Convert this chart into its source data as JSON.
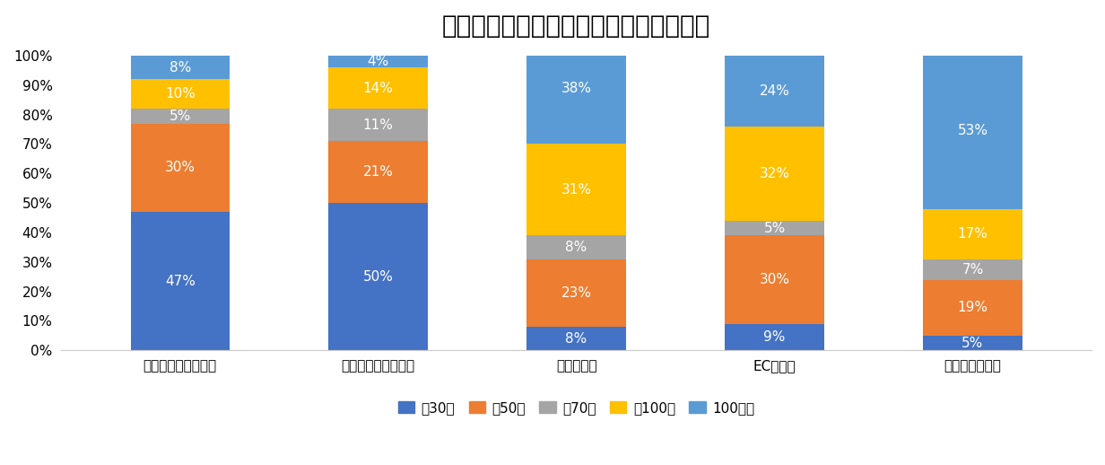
{
  "title": "東京都でのサイト種別ごとの費用の相場",
  "categories": [
    "コーポレートサイト",
    "ランディングページ",
    "採用サイト",
    "ECサイト",
    "ポータルサイト"
  ],
  "series": [
    {
      "label": "〜30万",
      "color": "#4472C4",
      "values": [
        47,
        50,
        8,
        9,
        5
      ]
    },
    {
      "label": "〜50万",
      "color": "#ED7D31",
      "values": [
        30,
        21,
        23,
        30,
        19
      ]
    },
    {
      "label": "〜70万",
      "color": "#A5A5A5",
      "values": [
        5,
        11,
        8,
        5,
        7
      ]
    },
    {
      "label": "〜100万",
      "color": "#FFC000",
      "values": [
        10,
        14,
        31,
        32,
        17
      ]
    },
    {
      "label": "100万〜",
      "color": "#5B9BD5",
      "values": [
        8,
        4,
        38,
        24,
        53
      ]
    }
  ],
  "background_color": "#FFFFFF",
  "title_fontsize": 20,
  "label_fontsize": 11,
  "tick_fontsize": 11,
  "legend_fontsize": 11,
  "bar_width": 0.5,
  "ylim": [
    0,
    100
  ],
  "yticks": [
    0,
    10,
    20,
    30,
    40,
    50,
    60,
    70,
    80,
    90,
    100
  ],
  "ytick_labels": [
    "0%",
    "10%",
    "20%",
    "30%",
    "40%",
    "50%",
    "60%",
    "70%",
    "80%",
    "90%",
    "100%"
  ]
}
